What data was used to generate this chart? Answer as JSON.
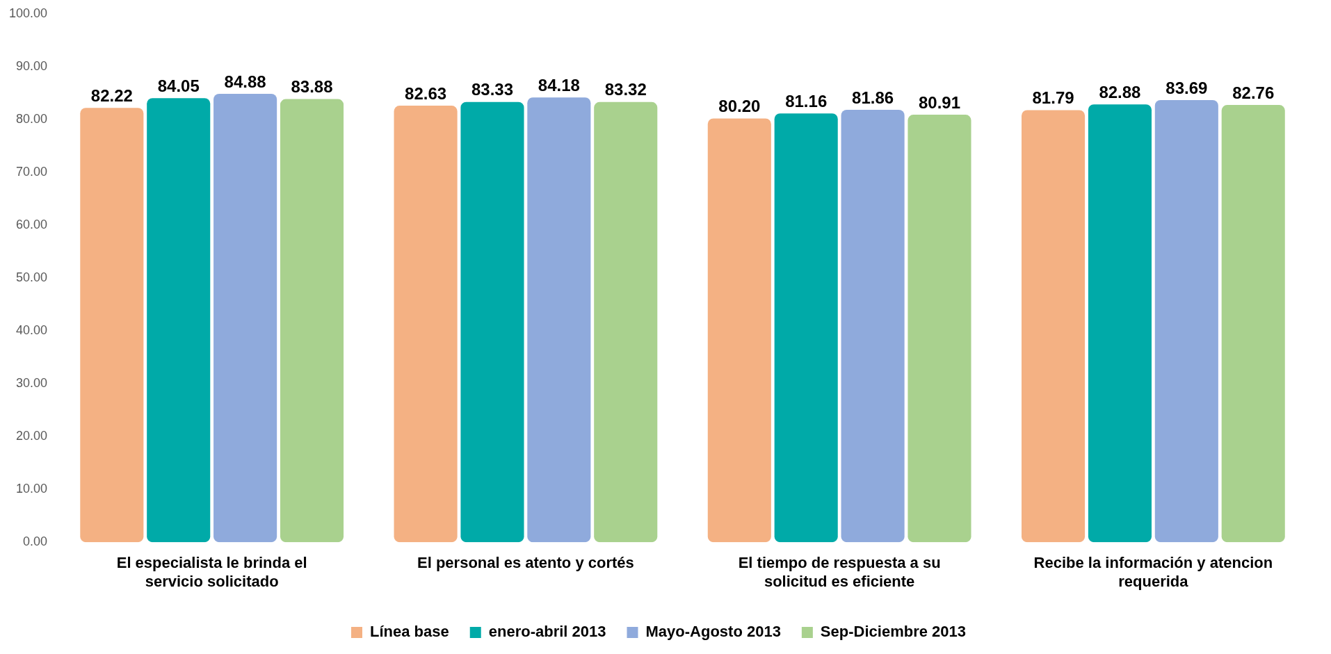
{
  "chart_data": {
    "type": "bar",
    "categories": [
      "El especialista le brinda el servicio solicitado",
      "El personal es atento y cortés",
      "El tiempo de respuesta a su solicitud es eficiente",
      "Recibe la información y atencion requerida"
    ],
    "series": [
      {
        "name": "Línea base",
        "color": "#f4b183",
        "values": [
          82.22,
          82.63,
          80.2,
          81.79
        ],
        "value_labels": [
          "82.22",
          "82.63",
          "80.20",
          "81.79"
        ]
      },
      {
        "name": "enero-abril 2013",
        "color": "#00aaa8",
        "values": [
          84.05,
          83.33,
          81.16,
          82.88
        ],
        "value_labels": [
          "84.05",
          "83.33",
          "81.16",
          "82.88"
        ]
      },
      {
        "name": "Mayo-Agosto 2013",
        "color": "#8faadc",
        "values": [
          84.88,
          84.18,
          81.86,
          83.69
        ],
        "value_labels": [
          "84.88",
          "84.18",
          "81.86",
          "83.69"
        ]
      },
      {
        "name": "Sep-Diciembre 2013",
        "color": "#a9d18e",
        "values": [
          83.88,
          83.32,
          80.91,
          82.76
        ],
        "value_labels": [
          "83.88",
          "83.32",
          "80.91",
          "82.76"
        ]
      }
    ],
    "ylim": [
      0,
      100
    ],
    "yticks": [
      {
        "value": 0,
        "label": "0.00"
      },
      {
        "value": 10,
        "label": "10.00"
      },
      {
        "value": 20,
        "label": "20.00"
      },
      {
        "value": 30,
        "label": "30.00"
      },
      {
        "value": 40,
        "label": "40.00"
      },
      {
        "value": 50,
        "label": "50.00"
      },
      {
        "value": 60,
        "label": "60.00"
      },
      {
        "value": 70,
        "label": "70.00"
      },
      {
        "value": 80,
        "label": "80.00"
      },
      {
        "value": 90,
        "label": "90.00"
      },
      {
        "value": 100,
        "label": "100.00"
      }
    ],
    "grid": false,
    "legend": "bottom"
  }
}
